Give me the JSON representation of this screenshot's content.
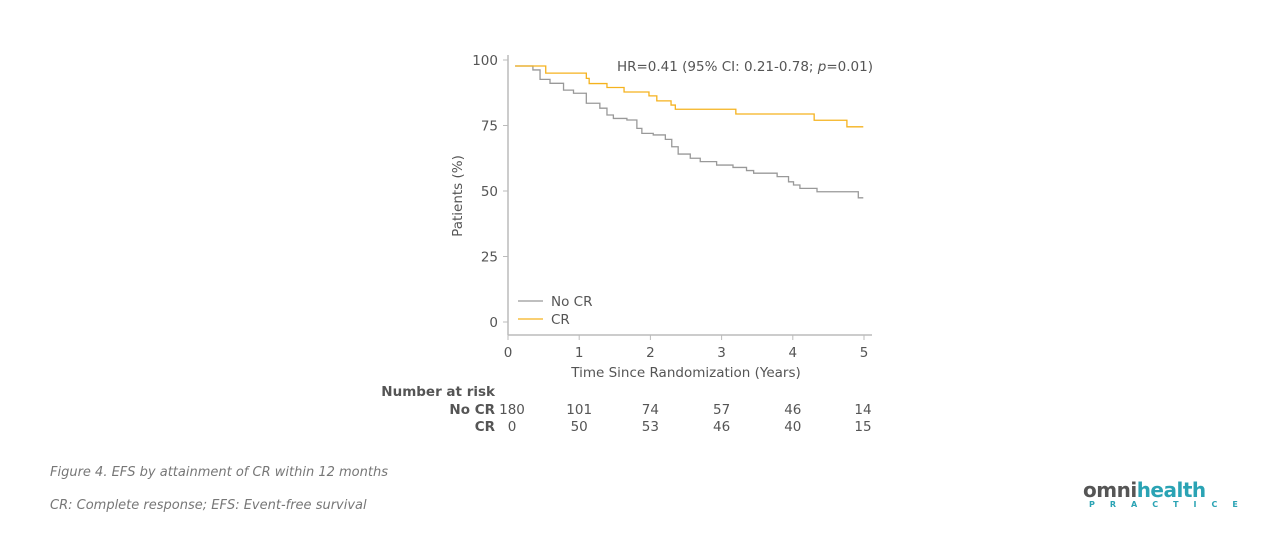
{
  "chart_data": {
    "type": "line",
    "subtype": "kaplan-meier step",
    "annotation": "HR=0.41 (95% CI: 0.21-0.78; p=0.01)",
    "annotation_parts": {
      "pre": "HR=0.41 (95% CI: 0.21-0.78; ",
      "p": "p",
      "post": "=0.01)"
    },
    "xlabel": "Time Since Randomization (Years)",
    "ylabel": "Patients (%)",
    "xlim": [
      0,
      5
    ],
    "ylim": [
      0,
      100
    ],
    "xticks": [
      0,
      1,
      2,
      3,
      4,
      5
    ],
    "yticks": [
      0,
      25,
      50,
      75,
      100
    ],
    "grid": false,
    "legend_position": "bottom-left",
    "series": [
      {
        "name": "No CR",
        "color": "#999999",
        "x": [
          0.1,
          0.19,
          0.35,
          0.45,
          0.59,
          0.78,
          0.92,
          1.1,
          1.29,
          1.39,
          1.48,
          1.67,
          1.81,
          1.88,
          2.04,
          2.21,
          2.3,
          2.39,
          2.56,
          2.7,
          2.93,
          3.16,
          3.35,
          3.45,
          3.78,
          3.94,
          4.01,
          4.1,
          4.34,
          4.92,
          4.99
        ],
        "y": [
          97.7,
          97.7,
          96.2,
          92.6,
          91.1,
          88.5,
          87.3,
          83.5,
          81.6,
          79.0,
          77.7,
          77.1,
          73.9,
          72.0,
          71.4,
          69.7,
          66.9,
          64.1,
          62.5,
          61.2,
          59.9,
          59.0,
          57.8,
          56.8,
          55.5,
          53.5,
          52.3,
          51.0,
          49.7,
          47.4,
          47.4
        ]
      },
      {
        "name": "CR",
        "color": "#f5b21e",
        "x": [
          0.1,
          0.53,
          1.1,
          1.14,
          1.39,
          1.63,
          1.98,
          2.09,
          2.29,
          2.35,
          3.2,
          4.3,
          4.76,
          4.99
        ],
        "y": [
          97.7,
          95.0,
          93.0,
          91.0,
          89.5,
          87.8,
          86.3,
          84.4,
          82.8,
          81.2,
          79.4,
          77.0,
          74.5,
          74.5
        ]
      }
    ],
    "risk_table": {
      "title": "Number at risk",
      "rows": [
        {
          "label": "No CR",
          "values": [
            180,
            101,
            74,
            57,
            46,
            14
          ]
        },
        {
          "label": "CR",
          "values": [
            0,
            50,
            53,
            46,
            40,
            15
          ]
        }
      ]
    }
  },
  "caption": "Figure 4. EFS by attainment of CR within 12 months",
  "footnote": "CR: Complete response; EFS: Event-free survival",
  "logo": {
    "word_prefix": "omni",
    "word_suffix": "health",
    "tagline": "PRACTICE",
    "color": "#2aa3b4"
  }
}
